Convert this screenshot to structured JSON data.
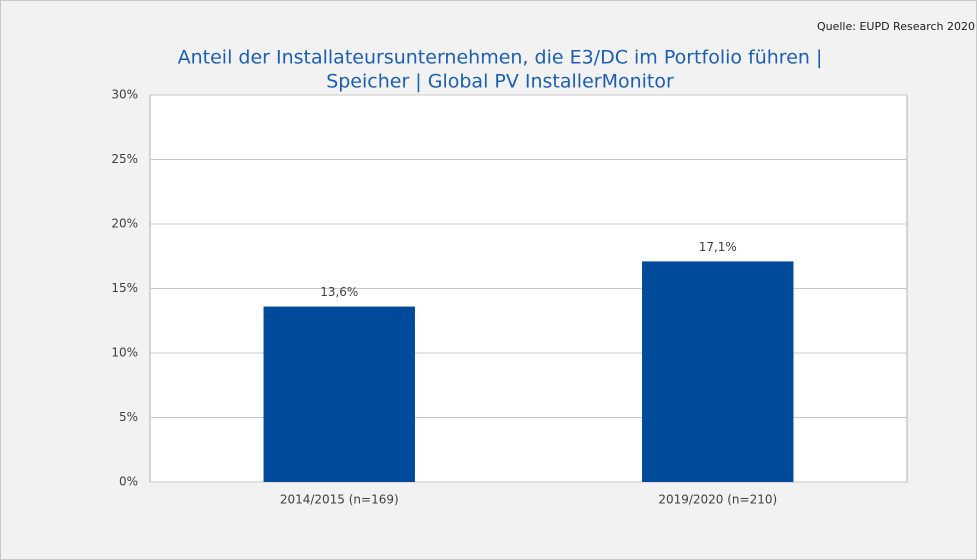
{
  "chart_data": {
    "type": "bar",
    "source": "Quelle: EUPD Research 2020",
    "title": [
      "Anteil der Installateursunternehmen, die E3/DC im Portfolio führen |",
      "Speicher | Global PV InstallerMonitor"
    ],
    "categories": [
      "2014/2015 (n=169)",
      "2019/2020 (n=210)"
    ],
    "values": [
      13.6,
      17.1
    ],
    "value_labels": [
      "13,6%",
      "17,1%"
    ],
    "color": "#004a9c",
    "ylim": [
      0,
      30
    ],
    "yticks": [
      {
        "value": 0,
        "label": "0%"
      },
      {
        "value": 5,
        "label": "5%"
      },
      {
        "value": 10,
        "label": "10%"
      },
      {
        "value": 15,
        "label": "15%"
      },
      {
        "value": 20,
        "label": "20%"
      },
      {
        "value": 25,
        "label": "25%"
      },
      {
        "value": 30,
        "label": "30%"
      }
    ],
    "grid": true
  }
}
